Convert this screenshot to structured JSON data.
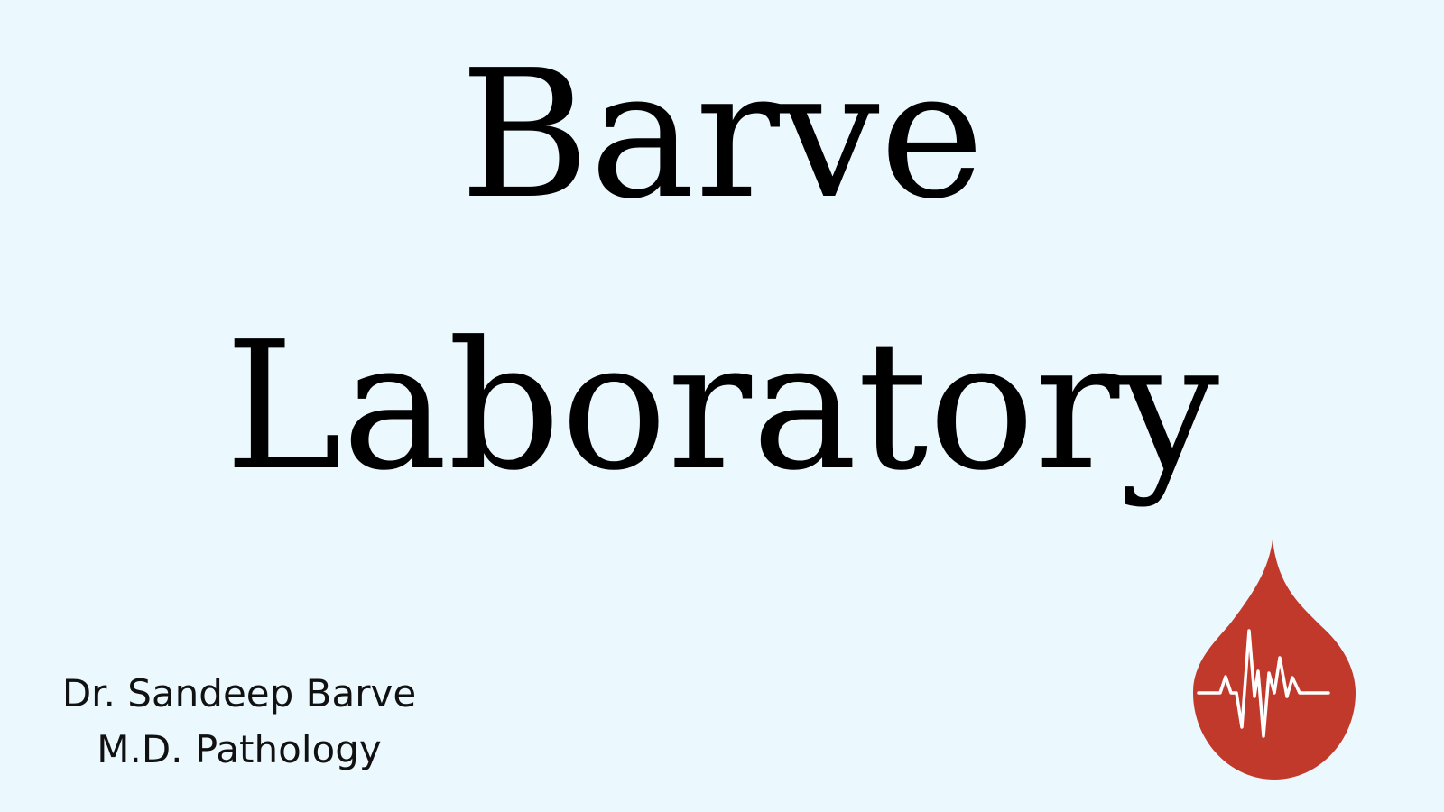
{
  "title": {
    "line1": "Barve",
    "line2": "Laboratory"
  },
  "doctor": {
    "name": "Dr. Sandeep Barve",
    "qualification": "M.D. Pathology"
  },
  "logo": {
    "icon": "blood-drop-heartbeat-icon",
    "drop_color": "#c0392b",
    "pulse_color": "#ffffff"
  },
  "colors": {
    "background": "#ebf8fd",
    "text": "#000000"
  }
}
